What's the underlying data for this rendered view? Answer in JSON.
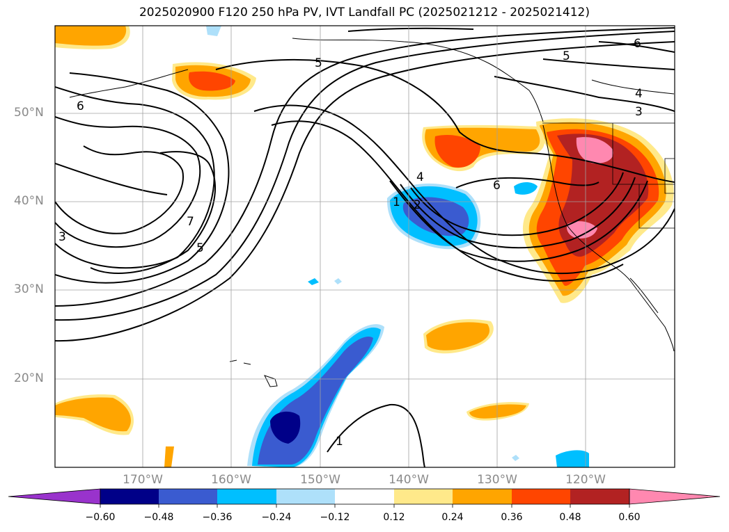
{
  "title": "2025020900 F120 250 hPa PV, IVT Landfall PC (2025021212 - 2025021412)",
  "lat_labels": [
    "50°N",
    "40°N",
    "30°N",
    "20°N"
  ],
  "lon_labels": [
    "170°W",
    "160°W",
    "150°W",
    "140°W",
    "130°W",
    "120°W"
  ],
  "contour_labels": [
    "5",
    "6",
    "6",
    "4",
    "3",
    "7",
    "5",
    "3",
    "1",
    "2",
    "4",
    "6",
    "1",
    "5"
  ],
  "colorbar": {
    "ticks": [
      "−0.60",
      "−0.48",
      "−0.36",
      "−0.24",
      "−0.12",
      "0.12",
      "0.24",
      "0.36",
      "0.48",
      "0.60"
    ],
    "colors": [
      "#9933cc",
      "#000088",
      "#3a5bd0",
      "#00bfff",
      "#aee0fa",
      "#ffffff",
      "#ffe98a",
      "#ffa500",
      "#ff4500",
      "#b22222",
      "#ff88b0"
    ]
  }
}
